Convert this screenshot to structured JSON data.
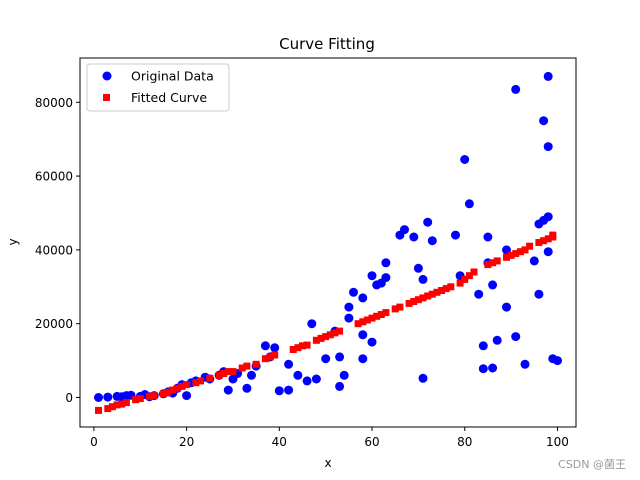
{
  "chart_data": {
    "type": "scatter",
    "title": "Curve Fitting",
    "xlabel": "x",
    "ylabel": "y",
    "xlim": [
      -3,
      104
    ],
    "ylim": [
      -8000,
      92000
    ],
    "xticks": [
      0,
      20,
      40,
      60,
      80,
      100
    ],
    "xtick_labels": [
      "0",
      "20",
      "40",
      "60",
      "80",
      "100"
    ],
    "yticks": [
      0,
      20000,
      40000,
      60000,
      80000
    ],
    "ytick_labels": [
      "0",
      "20000",
      "40000",
      "60000",
      "80000"
    ],
    "grid": false,
    "legend_position": "top-left",
    "series": [
      {
        "name": "Original Data",
        "color": "#0000ff",
        "marker": "circle",
        "points": [
          [
            1,
            0
          ],
          [
            3,
            100
          ],
          [
            5,
            300
          ],
          [
            6,
            200
          ],
          [
            7,
            500
          ],
          [
            8,
            600
          ],
          [
            10,
            300
          ],
          [
            11,
            800
          ],
          [
            12,
            200
          ],
          [
            13,
            500
          ],
          [
            15,
            1000
          ],
          [
            16,
            1500
          ],
          [
            17,
            1200
          ],
          [
            18,
            2500
          ],
          [
            19,
            3500
          ],
          [
            20,
            500
          ],
          [
            21,
            4000
          ],
          [
            22,
            4500
          ],
          [
            24,
            5500
          ],
          [
            25,
            5000
          ],
          [
            27,
            6000
          ],
          [
            28,
            7000
          ],
          [
            29,
            2000
          ],
          [
            30,
            5000
          ],
          [
            31,
            6500
          ],
          [
            33,
            2500
          ],
          [
            34,
            6000
          ],
          [
            35,
            8500
          ],
          [
            37,
            14000
          ],
          [
            38,
            11000
          ],
          [
            39,
            13500
          ],
          [
            40,
            1800
          ],
          [
            42,
            2000
          ],
          [
            42,
            9000
          ],
          [
            44,
            6000
          ],
          [
            46,
            4500
          ],
          [
            47,
            20000
          ],
          [
            48,
            5000
          ],
          [
            50,
            10500
          ],
          [
            52,
            18000
          ],
          [
            53,
            3000
          ],
          [
            53,
            11000
          ],
          [
            54,
            6000
          ],
          [
            55,
            21500
          ],
          [
            55,
            24500
          ],
          [
            56,
            28500
          ],
          [
            58,
            17000
          ],
          [
            58,
            27000
          ],
          [
            58,
            10500
          ],
          [
            60,
            33000
          ],
          [
            60,
            15000
          ],
          [
            61,
            30500
          ],
          [
            62,
            31000
          ],
          [
            63,
            32500
          ],
          [
            63,
            36500
          ],
          [
            66,
            44000
          ],
          [
            67,
            45500
          ],
          [
            69,
            43500
          ],
          [
            70,
            35000
          ],
          [
            71,
            5200
          ],
          [
            71,
            32000
          ],
          [
            72,
            47500
          ],
          [
            73,
            42500
          ],
          [
            78,
            44000
          ],
          [
            79,
            33000
          ],
          [
            80,
            64500
          ],
          [
            81,
            52500
          ],
          [
            83,
            28000
          ],
          [
            84,
            14000
          ],
          [
            84,
            7800
          ],
          [
            85,
            43500
          ],
          [
            85,
            36500
          ],
          [
            86,
            30500
          ],
          [
            86,
            8000
          ],
          [
            87,
            15500
          ],
          [
            89,
            40000
          ],
          [
            89,
            24500
          ],
          [
            91,
            83500
          ],
          [
            91,
            16500
          ],
          [
            93,
            9000
          ],
          [
            95,
            37000
          ],
          [
            96,
            28000
          ],
          [
            96,
            47000
          ],
          [
            97,
            75000
          ],
          [
            97,
            48000
          ],
          [
            98,
            87000
          ],
          [
            98,
            68000
          ],
          [
            98,
            49000
          ],
          [
            98,
            39500
          ],
          [
            99,
            10500
          ],
          [
            100,
            10000
          ]
        ]
      },
      {
        "name": "Fitted Curve",
        "color": "#ff0000",
        "marker": "square",
        "points": [
          [
            1,
            -3500
          ],
          [
            3,
            -3000
          ],
          [
            4,
            -2500
          ],
          [
            5,
            -2000
          ],
          [
            6,
            -1800
          ],
          [
            7,
            -1400
          ],
          [
            9,
            -600
          ],
          [
            10,
            -300
          ],
          [
            12,
            300
          ],
          [
            13,
            500
          ],
          [
            15,
            1000
          ],
          [
            16,
            1400
          ],
          [
            17,
            2000
          ],
          [
            18,
            2500
          ],
          [
            19,
            3000
          ],
          [
            20,
            3500
          ],
          [
            22,
            4000
          ],
          [
            23,
            4500
          ],
          [
            25,
            5200
          ],
          [
            27,
            6000
          ],
          [
            28,
            6500
          ],
          [
            29,
            7000
          ],
          [
            30,
            7000
          ],
          [
            32,
            8000
          ],
          [
            33,
            8500
          ],
          [
            35,
            9000
          ],
          [
            37,
            10500
          ],
          [
            38,
            11000
          ],
          [
            39,
            11500
          ],
          [
            43,
            13000
          ],
          [
            44,
            13500
          ],
          [
            45,
            14000
          ],
          [
            46,
            14200
          ],
          [
            48,
            15500
          ],
          [
            49,
            16000
          ],
          [
            50,
            16500
          ],
          [
            51,
            17000
          ],
          [
            52,
            17500
          ],
          [
            53,
            18000
          ],
          [
            57,
            20000
          ],
          [
            58,
            20500
          ],
          [
            59,
            21000
          ],
          [
            60,
            21500
          ],
          [
            61,
            22000
          ],
          [
            62,
            22500
          ],
          [
            63,
            23000
          ],
          [
            65,
            24000
          ],
          [
            66,
            24500
          ],
          [
            68,
            25500
          ],
          [
            69,
            26000
          ],
          [
            70,
            26500
          ],
          [
            71,
            27000
          ],
          [
            72,
            27500
          ],
          [
            73,
            28000
          ],
          [
            74,
            28500
          ],
          [
            75,
            29000
          ],
          [
            76,
            29500
          ],
          [
            77,
            30000
          ],
          [
            79,
            31000
          ],
          [
            80,
            32000
          ],
          [
            81,
            33000
          ],
          [
            82,
            34000
          ],
          [
            85,
            36000
          ],
          [
            86,
            36500
          ],
          [
            87,
            37000
          ],
          [
            89,
            38000
          ],
          [
            90,
            38500
          ],
          [
            91,
            39000
          ],
          [
            92,
            39500
          ],
          [
            93,
            40000
          ],
          [
            94,
            41000
          ],
          [
            96,
            42000
          ],
          [
            97,
            42500
          ],
          [
            98,
            43000
          ],
          [
            99,
            43500
          ],
          [
            99,
            44000
          ]
        ]
      }
    ]
  },
  "watermark": "CSDN @菌王"
}
